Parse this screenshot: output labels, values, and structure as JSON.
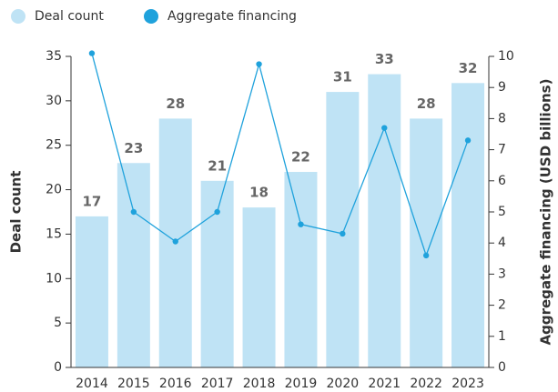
{
  "chart_data": {
    "type": "bar",
    "categories": [
      "2014",
      "2015",
      "2016",
      "2017",
      "2018",
      "2019",
      "2020",
      "2021",
      "2022",
      "2023"
    ],
    "series": [
      {
        "name": "Deal count",
        "color": "#bfe3f5",
        "values": [
          17,
          23,
          28,
          21,
          18,
          22,
          31,
          33,
          28,
          32
        ]
      },
      {
        "name": "Aggregate financing",
        "color": "#1fa2dc",
        "type": "line",
        "axis": "y2",
        "values": [
          10.1,
          5.0,
          4.05,
          5.0,
          9.75,
          4.6,
          4.3,
          7.7,
          3.6,
          7.3
        ]
      }
    ],
    "ylabel": "Deal count",
    "y2label": "Aggregate financing (USD billions)",
    "ylim": [
      0,
      35
    ],
    "yticks": [
      0,
      5,
      10,
      15,
      20,
      25,
      30,
      35
    ],
    "y2lim": [
      0,
      10
    ],
    "y2ticks": [
      0,
      1,
      2,
      3,
      4,
      5,
      6,
      7,
      8,
      9,
      10
    ],
    "legend": "top-left"
  }
}
